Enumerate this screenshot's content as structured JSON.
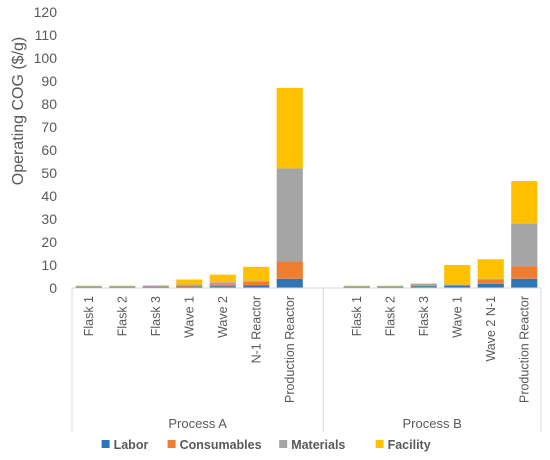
{
  "chart_data": {
    "type": "bar",
    "stacked": true,
    "ylabel": "Operating COG ($/g)",
    "ylim": [
      0,
      120
    ],
    "yticks": [
      0,
      10,
      20,
      30,
      40,
      50,
      60,
      70,
      80,
      90,
      100,
      110,
      120
    ],
    "grid": false,
    "legend_position": "bottom",
    "groups": [
      {
        "label": "Process A",
        "categories": [
          "Flask 1",
          "Flask 2",
          "Flask 3",
          "Wave 1",
          "Wave 2",
          "N-1 Reactor",
          "Production Reactor"
        ]
      },
      {
        "label": "Process B",
        "categories": [
          "Flask 1",
          "Flask 2",
          "Flask 3",
          "Wave 1",
          "Wave 2 N-1",
          "Production Reactor"
        ]
      }
    ],
    "categories": [
      "Flask 1",
      "Flask 2",
      "Flask 3",
      "Wave 1",
      "Wave 2",
      "N-1 Reactor",
      "Production Reactor",
      "Flask 1",
      "Flask 2",
      "Flask 3",
      "Wave 1",
      "Wave 2 N-1",
      "Production Reactor"
    ],
    "series": [
      {
        "name": "Labor",
        "color": "#2e75b6",
        "values": [
          0.6,
          0.6,
          0.6,
          0.6,
          0.8,
          1.2,
          4.0,
          0.6,
          0.6,
          0.8,
          1.0,
          1.8,
          4.0
        ]
      },
      {
        "name": "Consumables",
        "color": "#ed7d31",
        "values": [
          0.1,
          0.1,
          0.2,
          0.4,
          0.8,
          1.5,
          7.5,
          0.1,
          0.1,
          0.4,
          0.3,
          1.7,
          5.5
        ]
      },
      {
        "name": "Materials",
        "color": "#a5a5a5",
        "values": [
          0.1,
          0.1,
          0.2,
          0.5,
          0.9,
          0.5,
          40.5,
          0.1,
          0.1,
          0.6,
          0.2,
          0.5,
          18.5
        ]
      },
      {
        "name": "Facility",
        "color": "#ffc000",
        "values": [
          0.2,
          0.2,
          0.2,
          2.2,
          3.3,
          6.0,
          35.0,
          0.2,
          0.2,
          0.2,
          8.5,
          8.5,
          18.5
        ]
      }
    ]
  }
}
